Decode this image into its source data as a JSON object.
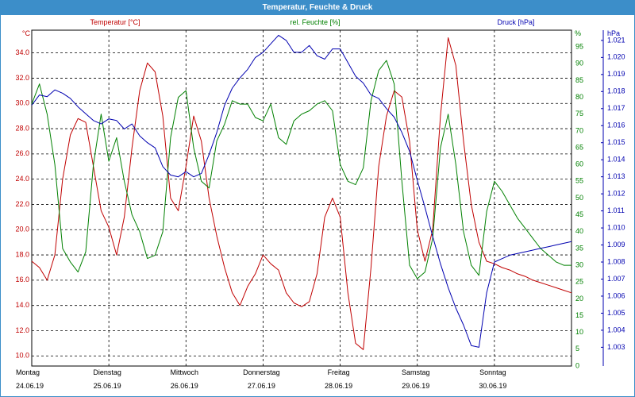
{
  "window": {
    "title": "Temperatur, Feuchte & Druck"
  },
  "chart_data": {
    "type": "line",
    "title": "Temperatur, Feuchte & Druck",
    "grid": true,
    "colors": {
      "temperature": "#c00000",
      "humidity": "#008000",
      "pressure": "#0000b0",
      "title_bar": "#3c8ec9"
    },
    "x_days": [
      {
        "name": "Montag",
        "date": "24.06.19"
      },
      {
        "name": "Dienstag",
        "date": "25.06.19"
      },
      {
        "name": "Mittwoch",
        "date": "26.06.19"
      },
      {
        "name": "Donnerstag",
        "date": "27.06.19"
      },
      {
        "name": "Freitag",
        "date": "28.06.19"
      },
      {
        "name": "Samstag",
        "date": "29.06.19"
      },
      {
        "name": "Sonntag",
        "date": "30.06.19"
      }
    ],
    "axes": {
      "temperature": {
        "label": "Temperatur [°C]",
        "unit": "°C",
        "ylim": [
          9.2,
          35.8
        ],
        "ticks": [
          "34.0",
          "32.0",
          "30.0",
          "28.0",
          "26.0",
          "24.0",
          "22.0",
          "20.0",
          "18.0",
          "16.0",
          "14.0",
          "12.0",
          "10.0"
        ]
      },
      "humidity": {
        "label": "rel. Feuchte [%]",
        "unit": "%",
        "ylim": [
          0,
          100
        ],
        "ticks": [
          "95",
          "90",
          "85",
          "80",
          "75",
          "70",
          "65",
          "60",
          "55",
          "50",
          "45",
          "40",
          "35",
          "30",
          "25",
          "20",
          "15",
          "10",
          "5",
          "0"
        ]
      },
      "pressure": {
        "label": "Druck [hPa]",
        "unit": "hPa",
        "ylim": [
          1.0019,
          1.0216
        ],
        "ticks": [
          "1.021",
          "1.020",
          "1.019",
          "1.018",
          "1.017",
          "1.016",
          "1.015",
          "1.014",
          "1.013",
          "1.012",
          "1.011",
          "1.010",
          "1.009",
          "1.008",
          "1.007",
          "1.006",
          "1.005",
          "1.004",
          "1.003"
        ]
      }
    },
    "series": [
      {
        "name": "Temperatur [°C]",
        "axis": "temperature",
        "x": [
          0,
          0.1,
          0.2,
          0.3,
          0.4,
          0.5,
          0.6,
          0.7,
          0.8,
          0.9,
          1.0,
          1.1,
          1.2,
          1.3,
          1.4,
          1.5,
          1.6,
          1.7,
          1.8,
          1.9,
          2.0,
          2.1,
          2.2,
          2.3,
          2.4,
          2.5,
          2.6,
          2.7,
          2.8,
          2.9,
          3.0,
          3.1,
          3.2,
          3.3,
          3.4,
          3.5,
          3.6,
          3.7,
          3.8,
          3.9,
          4.0,
          4.1,
          4.2,
          4.3,
          4.4,
          4.5,
          4.6,
          4.7,
          4.8,
          4.9,
          5.0,
          5.1,
          5.2,
          5.3,
          5.4,
          5.5,
          5.6,
          5.7,
          5.8,
          5.9,
          6.0,
          6.1,
          6.2,
          6.3,
          6.4,
          6.5,
          6.6,
          6.7,
          6.8,
          6.9,
          7.0
        ],
        "values": [
          17.5,
          17.0,
          16.0,
          18.0,
          24.0,
          27.5,
          28.8,
          28.5,
          25.0,
          21.5,
          20.2,
          18.0,
          21.0,
          26.5,
          31.0,
          33.2,
          32.5,
          29.0,
          22.5,
          21.5,
          25.0,
          29.0,
          27.0,
          22.5,
          19.5,
          17.0,
          15.0,
          14.0,
          15.5,
          16.5,
          18.0,
          17.3,
          16.8,
          15.0,
          14.2,
          13.9,
          14.3,
          16.5,
          21.0,
          22.5,
          21.0,
          15.0,
          11.0,
          10.5,
          17.0,
          25.0,
          29.0,
          31.0,
          30.5,
          27.0,
          20.0,
          17.5,
          20.0,
          29.0,
          35.2,
          33.0,
          27.0,
          22.0,
          19.0,
          17.5,
          17.3,
          17.0,
          16.8,
          16.5,
          16.3,
          16.0,
          15.8,
          15.6,
          15.4,
          15.2,
          15.0
        ]
      },
      {
        "name": "rel. Feuchte [%]",
        "axis": "humidity",
        "x": [
          0,
          0.1,
          0.2,
          0.3,
          0.4,
          0.5,
          0.6,
          0.7,
          0.8,
          0.9,
          1.0,
          1.1,
          1.2,
          1.3,
          1.4,
          1.5,
          1.6,
          1.7,
          1.8,
          1.9,
          2.0,
          2.1,
          2.2,
          2.3,
          2.4,
          2.5,
          2.6,
          2.7,
          2.8,
          2.9,
          3.0,
          3.1,
          3.2,
          3.3,
          3.4,
          3.5,
          3.6,
          3.7,
          3.8,
          3.9,
          4.0,
          4.1,
          4.2,
          4.3,
          4.4,
          4.5,
          4.6,
          4.7,
          4.8,
          4.9,
          5.0,
          5.1,
          5.2,
          5.3,
          5.4,
          5.5,
          5.6,
          5.7,
          5.8,
          5.9,
          6.0,
          6.1,
          6.2,
          6.3,
          6.4,
          6.5,
          6.6,
          6.7,
          6.8,
          6.9,
          7.0
        ],
        "values": [
          78,
          84,
          75,
          60,
          35,
          31,
          28,
          34,
          60,
          75,
          61,
          68,
          55,
          45,
          40,
          32,
          33,
          40,
          68,
          80,
          82,
          65,
          55,
          53,
          67,
          72,
          79,
          78,
          78,
          74,
          73,
          78,
          68,
          66,
          73,
          75,
          76,
          78,
          79,
          76,
          60,
          55,
          54,
          59,
          79,
          88,
          91,
          84,
          55,
          30,
          26,
          28,
          38,
          65,
          75,
          60,
          40,
          30,
          27,
          46,
          55,
          52,
          48,
          44,
          41,
          38,
          35,
          33,
          31,
          30,
          30
        ]
      },
      {
        "name": "Druck [hPa]",
        "axis": "pressure",
        "x": [
          0,
          0.1,
          0.2,
          0.3,
          0.4,
          0.5,
          0.6,
          0.7,
          0.8,
          0.9,
          1.0,
          1.1,
          1.2,
          1.3,
          1.4,
          1.5,
          1.6,
          1.7,
          1.8,
          1.9,
          2.0,
          2.1,
          2.2,
          2.3,
          2.4,
          2.5,
          2.6,
          2.7,
          2.8,
          2.9,
          3.0,
          3.1,
          3.2,
          3.3,
          3.4,
          3.5,
          3.6,
          3.7,
          3.8,
          3.9,
          4.0,
          4.1,
          4.2,
          4.3,
          4.4,
          4.5,
          4.6,
          4.7,
          4.8,
          4.9,
          5.0,
          5.1,
          5.2,
          5.3,
          5.4,
          5.5,
          5.6,
          5.7,
          5.8,
          5.9,
          6.0,
          6.1,
          6.2,
          6.3,
          6.4,
          6.5,
          6.6,
          6.7,
          6.8,
          6.9,
          7.0
        ],
        "values": [
          1.0172,
          1.0178,
          1.0177,
          1.0181,
          1.0179,
          1.0176,
          1.0171,
          1.0167,
          1.0163,
          1.0161,
          1.0164,
          1.0163,
          1.0158,
          1.0161,
          1.0154,
          1.015,
          1.0147,
          1.0136,
          1.0131,
          1.013,
          1.0133,
          1.013,
          1.0132,
          1.0143,
          1.0156,
          1.0172,
          1.0182,
          1.0188,
          1.0193,
          1.02,
          1.0203,
          1.0208,
          1.0213,
          1.021,
          1.0203,
          1.0203,
          1.0207,
          1.0201,
          1.0199,
          1.0205,
          1.0205,
          1.0197,
          1.0189,
          1.0185,
          1.0178,
          1.0176,
          1.017,
          1.0165,
          1.0156,
          1.0145,
          1.0128,
          1.0112,
          1.0095,
          1.0079,
          1.0065,
          1.0053,
          1.0043,
          1.0031,
          1.003,
          1.0062,
          1.008,
          1.0082,
          1.0084,
          1.0085,
          1.0086,
          1.0087,
          1.0088,
          1.0089,
          1.009,
          1.0091,
          1.0092
        ]
      }
    ]
  }
}
